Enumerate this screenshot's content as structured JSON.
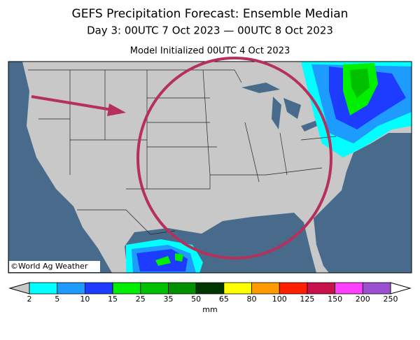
{
  "header": {
    "title": "GEFS Precipitation Forecast: Ensemble Median",
    "subtitle": "Day 3: 00UTC 7 Oct 2023 — 00UTC 8 Oct 2023",
    "initialized": "Model Initialized 00UTC 4 Oct 2023"
  },
  "map": {
    "credit": "©World Ag Weather"
  },
  "legend": {
    "ticks": [
      2,
      5,
      10,
      15,
      25,
      35,
      50,
      65,
      80,
      100,
      125,
      150,
      200,
      250
    ],
    "colors": [
      "#00ffff",
      "#1e9bff",
      "#1e3cff",
      "#00f000",
      "#00c000",
      "#009000",
      "#003600",
      "#ffff00",
      "#ff9a00",
      "#ff2000",
      "#c8104a",
      "#ff40ff",
      "#9a50d0"
    ],
    "unit": "mm"
  }
}
